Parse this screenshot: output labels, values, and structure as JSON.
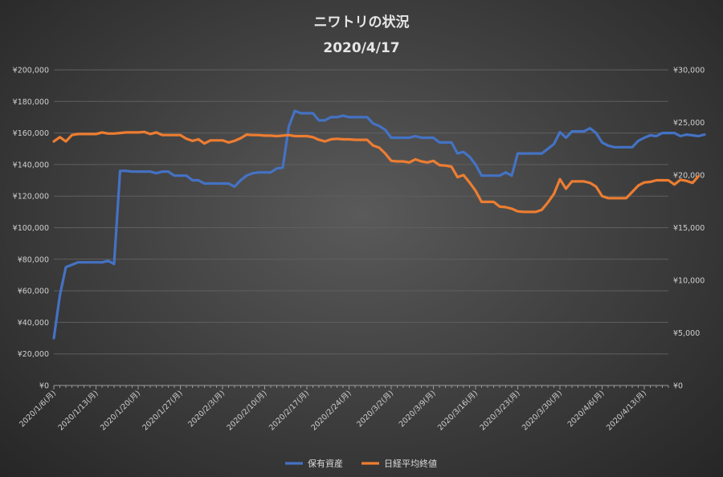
{
  "chart_data": {
    "type": "line",
    "title": "ニワトリの状況",
    "subtitle": "2020/4/17",
    "y_left": {
      "min": 0,
      "max": 200000,
      "step": 20000,
      "tick_labels": [
        "¥0",
        "¥20,000",
        "¥40,000",
        "¥60,000",
        "¥80,000",
        "¥100,000",
        "¥120,000",
        "¥140,000",
        "¥160,000",
        "¥180,000",
        "¥200,000"
      ]
    },
    "y_right": {
      "min": 0,
      "max": 30000,
      "step": 5000,
      "tick_labels": [
        "¥0",
        "¥5,000",
        "¥10,000",
        "¥15,000",
        "¥20,000",
        "¥25,000",
        "¥30,000"
      ]
    },
    "x_tick_labels": [
      "2020/1/6(月)",
      "2020/1/13(月)",
      "2020/1/20(月)",
      "2020/1/27(月)",
      "2020/2/3(月)",
      "2020/2/10(月)",
      "2020/2/17(月)",
      "2020/2/24(月)",
      "2020/3/2(月)",
      "2020/3/9(月)",
      "2020/3/16(月)",
      "2020/3/23(月)",
      "2020/3/30(月)",
      "2020/4/6(月)",
      "2020/4/13(月)"
    ],
    "x_range_days": [
      0,
      102
    ],
    "grid": "horizontal",
    "legend": "bottom",
    "series": [
      {
        "name": "保有資産",
        "axis": "left",
        "color": "#4472c4",
        "points": [
          [
            0,
            30000
          ],
          [
            1,
            57000
          ],
          [
            2,
            75000
          ],
          [
            3,
            76500
          ],
          [
            4,
            78000
          ],
          [
            5,
            78000
          ],
          [
            6,
            78000
          ],
          [
            7,
            78000
          ],
          [
            8,
            78000
          ],
          [
            9,
            79000
          ],
          [
            10,
            77000
          ],
          [
            11,
            136000
          ],
          [
            12,
            136000
          ],
          [
            13,
            135500
          ],
          [
            14,
            135500
          ],
          [
            15,
            135500
          ],
          [
            16,
            135500
          ],
          [
            17,
            134500
          ],
          [
            18,
            135500
          ],
          [
            19,
            135500
          ],
          [
            20,
            133000
          ],
          [
            21,
            133000
          ],
          [
            22,
            133000
          ],
          [
            23,
            130000
          ],
          [
            24,
            130000
          ],
          [
            25,
            128000
          ],
          [
            26,
            128000
          ],
          [
            27,
            128000
          ],
          [
            28,
            128000
          ],
          [
            29,
            128000
          ],
          [
            30,
            126000
          ],
          [
            31,
            130000
          ],
          [
            32,
            133000
          ],
          [
            33,
            134500
          ],
          [
            34,
            135000
          ],
          [
            35,
            135000
          ],
          [
            36,
            135000
          ],
          [
            37,
            137500
          ],
          [
            38,
            138000
          ],
          [
            39,
            164000
          ],
          [
            40,
            174000
          ],
          [
            41,
            172500
          ],
          [
            42,
            172500
          ],
          [
            43,
            172500
          ],
          [
            44,
            168000
          ],
          [
            45,
            168000
          ],
          [
            46,
            170000
          ],
          [
            47,
            170000
          ],
          [
            48,
            171000
          ],
          [
            49,
            170000
          ],
          [
            50,
            170000
          ],
          [
            51,
            170000
          ],
          [
            52,
            170000
          ],
          [
            53,
            166000
          ],
          [
            54,
            164500
          ],
          [
            55,
            162000
          ],
          [
            56,
            157000
          ],
          [
            57,
            157000
          ],
          [
            58,
            157000
          ],
          [
            59,
            157000
          ],
          [
            60,
            158000
          ],
          [
            61,
            157000
          ],
          [
            62,
            157000
          ],
          [
            63,
            157000
          ],
          [
            64,
            154000
          ],
          [
            65,
            154000
          ],
          [
            66,
            154000
          ],
          [
            67,
            147000
          ],
          [
            68,
            148000
          ],
          [
            69,
            145000
          ],
          [
            70,
            140000
          ],
          [
            71,
            133000
          ],
          [
            72,
            133000
          ],
          [
            73,
            133000
          ],
          [
            74,
            133000
          ],
          [
            75,
            135000
          ],
          [
            76,
            133000
          ],
          [
            77,
            147000
          ],
          [
            78,
            147000
          ],
          [
            79,
            147000
          ],
          [
            80,
            147000
          ],
          [
            81,
            147000
          ],
          [
            82,
            150000
          ],
          [
            83,
            153000
          ],
          [
            84,
            160500
          ],
          [
            85,
            157000
          ],
          [
            86,
            161000
          ],
          [
            87,
            161000
          ],
          [
            88,
            161000
          ],
          [
            89,
            163000
          ],
          [
            90,
            160000
          ],
          [
            91,
            154000
          ],
          [
            92,
            152000
          ],
          [
            93,
            151000
          ],
          [
            94,
            151000
          ],
          [
            95,
            151000
          ],
          [
            96,
            151000
          ],
          [
            97,
            155000
          ],
          [
            98,
            157000
          ],
          [
            99,
            158500
          ],
          [
            100,
            158000
          ],
          [
            101,
            160000
          ],
          [
            102,
            160000
          ],
          [
            103,
            160000
          ],
          [
            104,
            158000
          ],
          [
            105,
            159000
          ],
          [
            106,
            158500
          ],
          [
            107,
            158000
          ],
          [
            108,
            159000
          ]
        ]
      },
      {
        "name": "日経平均終値",
        "axis": "right",
        "color": "#ed7d31",
        "points": [
          [
            0,
            23200
          ],
          [
            1,
            23600
          ],
          [
            2,
            23200
          ],
          [
            3,
            23800
          ],
          [
            4,
            23900
          ],
          [
            5,
            23900
          ],
          [
            6,
            23900
          ],
          [
            7,
            23900
          ],
          [
            8,
            24050
          ],
          [
            9,
            23950
          ],
          [
            10,
            23950
          ],
          [
            11,
            24000
          ],
          [
            12,
            24050
          ],
          [
            13,
            24050
          ],
          [
            14,
            24050
          ],
          [
            15,
            24100
          ],
          [
            16,
            23900
          ],
          [
            17,
            24050
          ],
          [
            18,
            23800
          ],
          [
            19,
            23800
          ],
          [
            20,
            23800
          ],
          [
            21,
            23800
          ],
          [
            22,
            23450
          ],
          [
            23,
            23250
          ],
          [
            24,
            23400
          ],
          [
            25,
            23000
          ],
          [
            26,
            23300
          ],
          [
            27,
            23300
          ],
          [
            28,
            23300
          ],
          [
            29,
            23100
          ],
          [
            30,
            23250
          ],
          [
            31,
            23500
          ],
          [
            32,
            23850
          ],
          [
            33,
            23800
          ],
          [
            34,
            23800
          ],
          [
            35,
            23750
          ],
          [
            36,
            23750
          ],
          [
            37,
            23700
          ],
          [
            38,
            23750
          ],
          [
            39,
            23800
          ],
          [
            40,
            23700
          ],
          [
            41,
            23700
          ],
          [
            42,
            23700
          ],
          [
            43,
            23600
          ],
          [
            44,
            23350
          ],
          [
            45,
            23200
          ],
          [
            46,
            23400
          ],
          [
            47,
            23450
          ],
          [
            48,
            23400
          ],
          [
            49,
            23400
          ],
          [
            50,
            23350
          ],
          [
            51,
            23350
          ],
          [
            52,
            23350
          ],
          [
            53,
            22800
          ],
          [
            54,
            22600
          ],
          [
            55,
            22050
          ],
          [
            56,
            21350
          ],
          [
            57,
            21300
          ],
          [
            58,
            21300
          ],
          [
            59,
            21200
          ],
          [
            60,
            21500
          ],
          [
            61,
            21300
          ],
          [
            62,
            21200
          ],
          [
            63,
            21350
          ],
          [
            64,
            20950
          ],
          [
            65,
            20900
          ],
          [
            66,
            20800
          ],
          [
            67,
            19800
          ],
          [
            68,
            20000
          ],
          [
            69,
            19300
          ],
          [
            70,
            18500
          ],
          [
            71,
            17450
          ],
          [
            72,
            17450
          ],
          [
            73,
            17450
          ],
          [
            74,
            17000
          ],
          [
            75,
            16950
          ],
          [
            76,
            16800
          ],
          [
            77,
            16550
          ],
          [
            78,
            16500
          ],
          [
            79,
            16500
          ],
          [
            80,
            16500
          ],
          [
            81,
            16700
          ],
          [
            82,
            17400
          ],
          [
            83,
            18200
          ],
          [
            84,
            19600
          ],
          [
            85,
            18700
          ],
          [
            86,
            19400
          ],
          [
            87,
            19400
          ],
          [
            88,
            19400
          ],
          [
            89,
            19250
          ],
          [
            90,
            18900
          ],
          [
            91,
            18000
          ],
          [
            92,
            17800
          ],
          [
            93,
            17800
          ],
          [
            94,
            17800
          ],
          [
            95,
            17800
          ],
          [
            96,
            18400
          ],
          [
            97,
            19000
          ],
          [
            98,
            19300
          ],
          [
            99,
            19350
          ],
          [
            100,
            19500
          ],
          [
            101,
            19500
          ],
          [
            102,
            19500
          ],
          [
            103,
            19100
          ],
          [
            104,
            19550
          ],
          [
            105,
            19450
          ],
          [
            106,
            19250
          ],
          [
            107,
            19900
          ]
        ]
      }
    ]
  }
}
